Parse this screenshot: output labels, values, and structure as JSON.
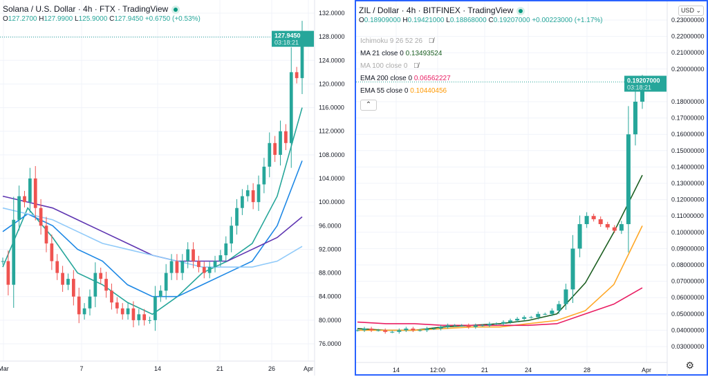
{
  "left": {
    "title": "Solana / U.S. Dollar · 4h · FTX · TradingView",
    "ohlc": {
      "o": "127.2700",
      "h": "127.9900",
      "l": "125.9000",
      "c": "127.9450",
      "chg": "+0.6750 (+0.53%)"
    },
    "price_ticks": [
      "132.0000",
      "128.0000",
      "124.0000",
      "120.0000",
      "116.0000",
      "112.0000",
      "108.0000",
      "104.0000",
      "100.0000",
      "96.0000",
      "92.0000",
      "88.0000",
      "84.0000",
      "80.0000",
      "76.0000"
    ],
    "time_ticks": [
      "Mar",
      "7",
      "14",
      "21",
      "26",
      "Apr"
    ],
    "last_price": "127.9450",
    "countdown": "03:18:21",
    "closes": [
      90,
      86,
      97,
      101,
      100,
      104,
      99,
      96,
      93,
      90,
      88,
      86,
      87,
      84,
      81,
      82,
      84,
      88,
      87,
      85,
      83,
      82,
      81,
      82,
      80,
      81,
      80,
      80,
      84,
      85,
      88,
      90,
      88,
      90,
      92,
      90,
      89,
      88,
      89,
      90,
      91,
      93,
      96,
      99,
      101,
      102,
      100,
      103,
      106,
      110,
      108,
      112,
      110,
      122,
      121,
      128
    ],
    "ma_lines": [
      {
        "color": "#26a69a",
        "values": [
          89,
          99,
          94,
          88,
          86,
          83,
          81,
          84,
          88,
          90,
          93,
          101,
          116
        ]
      },
      {
        "color": "#1e88e5",
        "values": [
          95,
          98,
          96,
          92,
          90,
          86,
          84,
          84,
          86,
          88,
          90,
          96,
          107
        ]
      },
      {
        "color": "#5e35b1",
        "values": [
          101,
          100,
          99,
          97,
          95,
          93,
          91,
          90,
          90,
          90,
          92,
          94,
          97.5
        ]
      },
      {
        "color": "#90caf9",
        "values": [
          99,
          98,
          97,
          95,
          93,
          92,
          91,
          90,
          89,
          89,
          89,
          90,
          92.5
        ]
      }
    ]
  },
  "right": {
    "title": "ZIL / Dollar · 4h · BITFINEX · TradingView",
    "ohlc": {
      "o": "0.18909000",
      "h": "0.19421000",
      "l": "0.18868000",
      "c": "0.19207000",
      "chg": "+0.00223000 (+1.17%)"
    },
    "indicators": [
      {
        "label": "Ichimoku 9 26 52 26",
        "value": "",
        "hidden": true,
        "color": ""
      },
      {
        "label": "MA 21 close 0",
        "value": "0.13493524",
        "hidden": false,
        "color": "#1b5e20"
      },
      {
        "label": "MA 100 close 0",
        "value": "",
        "hidden": true,
        "color": ""
      },
      {
        "label": "EMA 200 close 0",
        "value": "0.06562227",
        "hidden": false,
        "color": "#e91e63"
      },
      {
        "label": "EMA 55 close 0",
        "value": "0.10440456",
        "hidden": false,
        "color": "#ff9800"
      }
    ],
    "currency": "USD",
    "price_ticks": [
      "0.23000000",
      "0.22000000",
      "0.21000000",
      "0.20000000",
      "0.18000000",
      "0.17000000",
      "0.16000000",
      "0.15000000",
      "0.14000000",
      "0.13000000",
      "0.12000000",
      "0.11000000",
      "0.10000000",
      "0.09000000",
      "0.08000000",
      "0.07000000",
      "0.06000000",
      "0.05000000",
      "0.04000000",
      "0.03000000"
    ],
    "time_ticks": [
      "14",
      "12:00",
      "21",
      "24",
      "28",
      "Apr"
    ],
    "last_price": "0.19207000",
    "countdown": "03:18:21",
    "closes": [
      0.04,
      0.041,
      0.04,
      0.04,
      0.039,
      0.039,
      0.04,
      0.041,
      0.04,
      0.04,
      0.041,
      0.041,
      0.042,
      0.043,
      0.043,
      0.043,
      0.042,
      0.043,
      0.043,
      0.044,
      0.044,
      0.045,
      0.046,
      0.047,
      0.048,
      0.048,
      0.05,
      0.05,
      0.052,
      0.056,
      0.065,
      0.09,
      0.105,
      0.11,
      0.108,
      0.105,
      0.103,
      0.101,
      0.105,
      0.16,
      0.18,
      0.192
    ],
    "ma_lines": [
      {
        "color": "#1b5e20",
        "values": [
          0.041,
          0.04,
          0.04,
          0.042,
          0.043,
          0.044,
          0.046,
          0.05,
          0.069,
          0.1,
          0.135
        ]
      },
      {
        "color": "#ffa726",
        "values": [
          0.04,
          0.04,
          0.04,
          0.041,
          0.042,
          0.042,
          0.044,
          0.046,
          0.052,
          0.068,
          0.104
        ]
      },
      {
        "color": "#e91e63",
        "values": [
          0.045,
          0.044,
          0.044,
          0.043,
          0.043,
          0.043,
          0.043,
          0.044,
          0.05,
          0.056,
          0.066
        ]
      }
    ]
  },
  "colors": {
    "up": "#26a69a",
    "down": "#ef5350",
    "grid": "#f0f3fa"
  }
}
